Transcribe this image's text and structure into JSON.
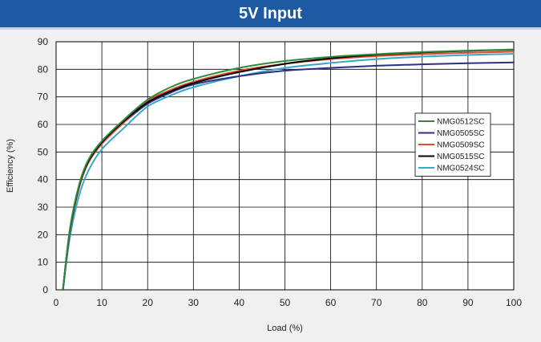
{
  "chart_data": {
    "type": "line",
    "title": "5V Input",
    "xlabel": "Load  (%)",
    "ylabel": "Efficiency  (%)",
    "xlim": [
      0,
      100
    ],
    "ylim": [
      0,
      90
    ],
    "xticks": [
      0,
      10,
      20,
      30,
      40,
      50,
      60,
      70,
      80,
      90,
      100
    ],
    "yticks": [
      0,
      10,
      20,
      30,
      40,
      50,
      60,
      70,
      80,
      90
    ],
    "grid": true,
    "legend_position": "right",
    "series": [
      {
        "name": "NMG0512SC",
        "color": "#2e8b3e",
        "x": [
          1.5,
          3,
          5,
          7,
          10,
          15,
          20,
          25,
          30,
          40,
          50,
          60,
          70,
          80,
          90,
          100
        ],
        "y": [
          0,
          22,
          38,
          47,
          54,
          62,
          69,
          73.5,
          76.5,
          80.5,
          83,
          84.5,
          85.5,
          86.3,
          86.8,
          87.2
        ]
      },
      {
        "name": "NMG0505SC",
        "color": "#2b2f86",
        "x": [
          1.5,
          3,
          5,
          7,
          10,
          15,
          20,
          25,
          30,
          40,
          50,
          60,
          70,
          80,
          90,
          100
        ],
        "y": [
          0,
          21,
          37,
          46,
          53,
          61,
          67.5,
          71.5,
          74.5,
          77.5,
          79.5,
          80.5,
          81.3,
          81.8,
          82.2,
          82.5
        ]
      },
      {
        "name": "NMG0509SC",
        "color": "#e24a2a",
        "x": [
          1.5,
          3,
          5,
          7,
          10,
          15,
          20,
          25,
          30,
          40,
          50,
          60,
          70,
          80,
          90,
          100
        ],
        "y": [
          0,
          21,
          37,
          46,
          53,
          61,
          68.5,
          72.5,
          75.5,
          79.5,
          82,
          83.7,
          84.8,
          85.5,
          86,
          86.4
        ]
      },
      {
        "name": "NMG0515SC",
        "color": "#000000",
        "x": [
          1.5,
          3,
          5,
          7,
          10,
          15,
          20,
          25,
          30,
          40,
          50,
          60,
          70,
          80,
          90,
          100
        ],
        "y": [
          0,
          21.5,
          37.5,
          46.5,
          53.5,
          61.5,
          68,
          72,
          75,
          79,
          82,
          84,
          85.3,
          86.1,
          86.7,
          87.1
        ]
      },
      {
        "name": "NMG0524SC",
        "color": "#3aa6c9",
        "x": [
          1.5,
          3,
          5,
          7,
          10,
          15,
          20,
          25,
          30,
          40,
          50,
          60,
          70,
          80,
          90,
          100
        ],
        "y": [
          0,
          19,
          34,
          43,
          51,
          59,
          66.5,
          70.5,
          73.5,
          77.5,
          80.5,
          82.3,
          83.7,
          84.6,
          85.2,
          85.6
        ]
      }
    ]
  }
}
